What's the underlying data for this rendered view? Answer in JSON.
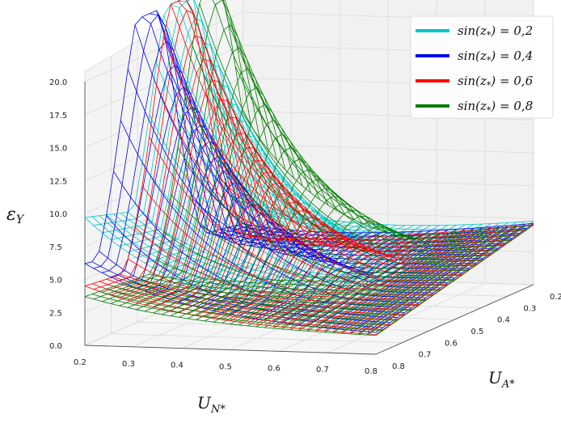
{
  "chart_data": {
    "type": "surface3d",
    "title": "",
    "xlabel": "U_{N*}",
    "ylabel": "U_{A*}",
    "zlabel": "ε_Y",
    "x_ticks": [
      "0.2",
      "0.3",
      "0.4",
      "0.5",
      "0.6",
      "0.7",
      "0.8"
    ],
    "y_ticks": [
      "0.8",
      "0.7",
      "0.6",
      "0.5",
      "0.4",
      "0.3",
      "0.2"
    ],
    "z_ticks": [
      "0.0",
      "2.5",
      "5.0",
      "7.5",
      "10.0",
      "12.5",
      "15.0",
      "17.5",
      "20.0"
    ],
    "zlim": [
      0,
      20
    ],
    "legend_position": "top-right",
    "series": [
      {
        "name": "sin(z*) = 0,2",
        "label_lhs": "sin(z",
        "label_rhs": ") = 0,2",
        "color": "#00c8c8",
        "z_corner": 8.5,
        "ridge": 0.6
      },
      {
        "name": "sin(z*) = 0,4",
        "label_lhs": "sin(z",
        "label_rhs": ") = 0,4",
        "color": "#0000ee",
        "z_corner": 5.0,
        "ridge": 0.4
      },
      {
        "name": "sin(z*) = 0,6",
        "label_lhs": "sin(z",
        "label_rhs": ") = 0,6",
        "color": "#ff0000",
        "z_corner": 3.3,
        "ridge": 0.6
      },
      {
        "name": "sin(z*) = 0,8",
        "label_lhs": "sin(z",
        "label_rhs": ") = 0,8",
        "color": "#007c00",
        "z_corner": 2.5,
        "ridge": 0.8
      }
    ]
  }
}
